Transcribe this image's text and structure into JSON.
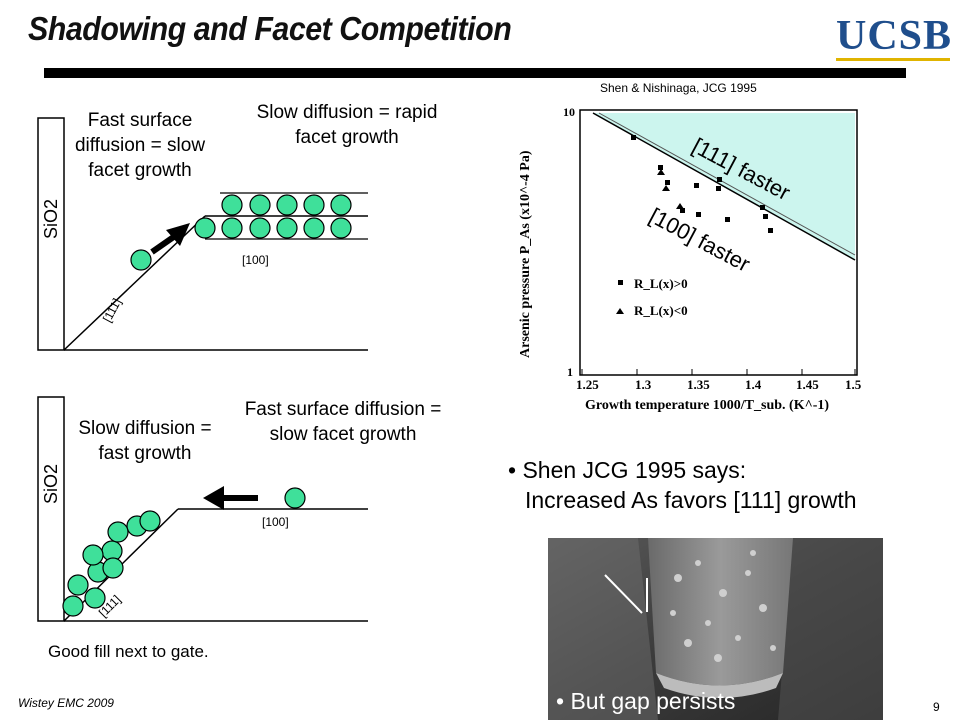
{
  "header": {
    "title": "Shadowing and Facet Competition",
    "logo_text": "UCSB"
  },
  "top_diagram": {
    "sio2_label": "SiO2",
    "left_text": "Fast surface diffusion = slow facet growth",
    "right_text": "Slow diffusion = rapid facet growth",
    "facet_111": "[111]",
    "facet_100": "[100]"
  },
  "bottom_diagram": {
    "sio2_label": "SiO2",
    "left_text": "Slow diffusion = fast growth",
    "right_text": "Fast surface diffusion = slow facet growth",
    "facet_111": "[111]",
    "facet_100": "[100]",
    "caption": "Good fill next to gate."
  },
  "graph": {
    "citation": "Shen & Nishinaga, JCG 1995",
    "ylabel": "Arsenic pressure P_As (x10^-4 Pa)",
    "xlabel": "Growth temperature 1000/T_sub. (K^-1)",
    "x_ticks": [
      "1.25",
      "1.3",
      "1.35",
      "1.4",
      "1.45",
      "1.5"
    ],
    "y_ticks": [
      "10",
      "1"
    ],
    "region_upper": "[111] faster",
    "region_lower": "[100] faster",
    "legend": [
      "R_L(x)>0",
      "R_L(x)<0"
    ]
  },
  "bullets": {
    "shen_line1": "Shen JCG 1995 says:",
    "shen_line2": "Increased As favors [111] growth",
    "gap": "But gap persists"
  },
  "footer": {
    "author": "Wistey EMC 2009",
    "page": "9"
  },
  "colors": {
    "atom_fill": "#3fe09a",
    "highlight": "#ccf5ee",
    "logo_blue": "#1f4e8c"
  }
}
